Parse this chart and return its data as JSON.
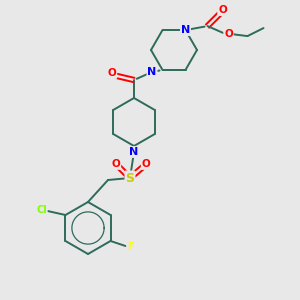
{
  "bg_color": "#e8e8e8",
  "bond_color": "#2d6b5a",
  "atom_colors": {
    "N": "#0000ff",
    "O": "#ff0000",
    "S": "#cccc00",
    "Cl": "#7fff00",
    "F": "#ffff00",
    "C": "#2d6b5a"
  },
  "figsize": [
    3.0,
    3.0
  ],
  "dpi": 100
}
